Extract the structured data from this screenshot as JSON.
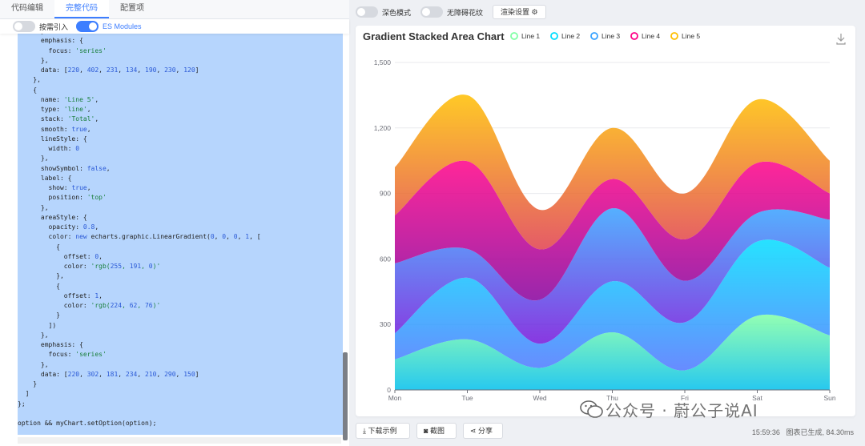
{
  "tabs": [
    "代码编辑",
    "完整代码",
    "配置项"
  ],
  "toggles": {
    "on_demand": "按需引入",
    "es_modules": "ES Modules"
  },
  "topbar": {
    "dark_mode": "深色模式",
    "accessible": "无障碍花纹",
    "render_settings": "渲染设置 ⚙"
  },
  "code_lines": [
    "      },",
    "      emphasis: {",
    "        focus: 'series'",
    "      },",
    "      data: [220, 402, 231, 134, 190, 230, 120]",
    "    },",
    "    {",
    "      name: 'Line 5',",
    "      type: 'line',",
    "      stack: 'Total',",
    "      smooth: true,",
    "      lineStyle: {",
    "        width: 0",
    "      },",
    "      showSymbol: false,",
    "      label: {",
    "        show: true,",
    "        position: 'top'",
    "      },",
    "      areaStyle: {",
    "        opacity: 0.8,",
    "        color: new echarts.graphic.LinearGradient(0, 0, 0, 1, [",
    "          {",
    "            offset: 0,",
    "            color: 'rgb(255, 191, 0)'",
    "          },",
    "          {",
    "            offset: 1,",
    "            color: 'rgb(224, 62, 76)'",
    "          }",
    "        ])",
    "      },",
    "      emphasis: {",
    "        focus: 'series'",
    "      },",
    "      data: [220, 302, 181, 234, 210, 290, 150]",
    "    }",
    "  ]",
    "};",
    "",
    "option && myChart.setOption(option);"
  ],
  "bottom": {
    "download": "下载示例",
    "screenshot": "截图",
    "share": "分享",
    "time": "15:59:36",
    "status": "图表已生成, 84.30ms"
  },
  "watermark": "公众号 · 蔚公子说AI",
  "chart_data": {
    "type": "area",
    "title": "Gradient Stacked Area Chart",
    "categories": [
      "Mon",
      "Tue",
      "Wed",
      "Thu",
      "Fri",
      "Sat",
      "Sun"
    ],
    "ylim": [
      0,
      1500
    ],
    "yticks": [
      0,
      300,
      600,
      900,
      1200,
      "1,500"
    ],
    "ytick_labels": [
      "0",
      "300",
      "600",
      "900",
      "1,200",
      "1,500"
    ],
    "stacked": true,
    "legend_position": "top",
    "series": [
      {
        "name": "Line 1",
        "values": [
          140,
          232,
          101,
          264,
          90,
          340,
          250
        ],
        "grad": [
          "#80ffa5",
          "#01bfec"
        ],
        "legend": "#80ffa5"
      },
      {
        "name": "Line 2",
        "values": [
          120,
          282,
          111,
          234,
          220,
          340,
          310
        ],
        "grad": [
          "#00ddff",
          "#4d77ff"
        ],
        "legend": "#00ddff"
      },
      {
        "name": "Line 3",
        "values": [
          320,
          132,
          201,
          334,
          190,
          130,
          220
        ],
        "grad": [
          "#37a2ff",
          "#7415db"
        ],
        "legend": "#37a2ff"
      },
      {
        "name": "Line 4",
        "values": [
          220,
          402,
          231,
          134,
          190,
          230,
          120
        ],
        "grad": [
          "#ff0087",
          "#87009d"
        ],
        "legend": "#ff0087"
      },
      {
        "name": "Line 5",
        "values": [
          220,
          302,
          181,
          234,
          210,
          290,
          150
        ],
        "grad": [
          "#ffbf00",
          "#e03e4c"
        ],
        "legend": "#ffbf00"
      }
    ]
  }
}
